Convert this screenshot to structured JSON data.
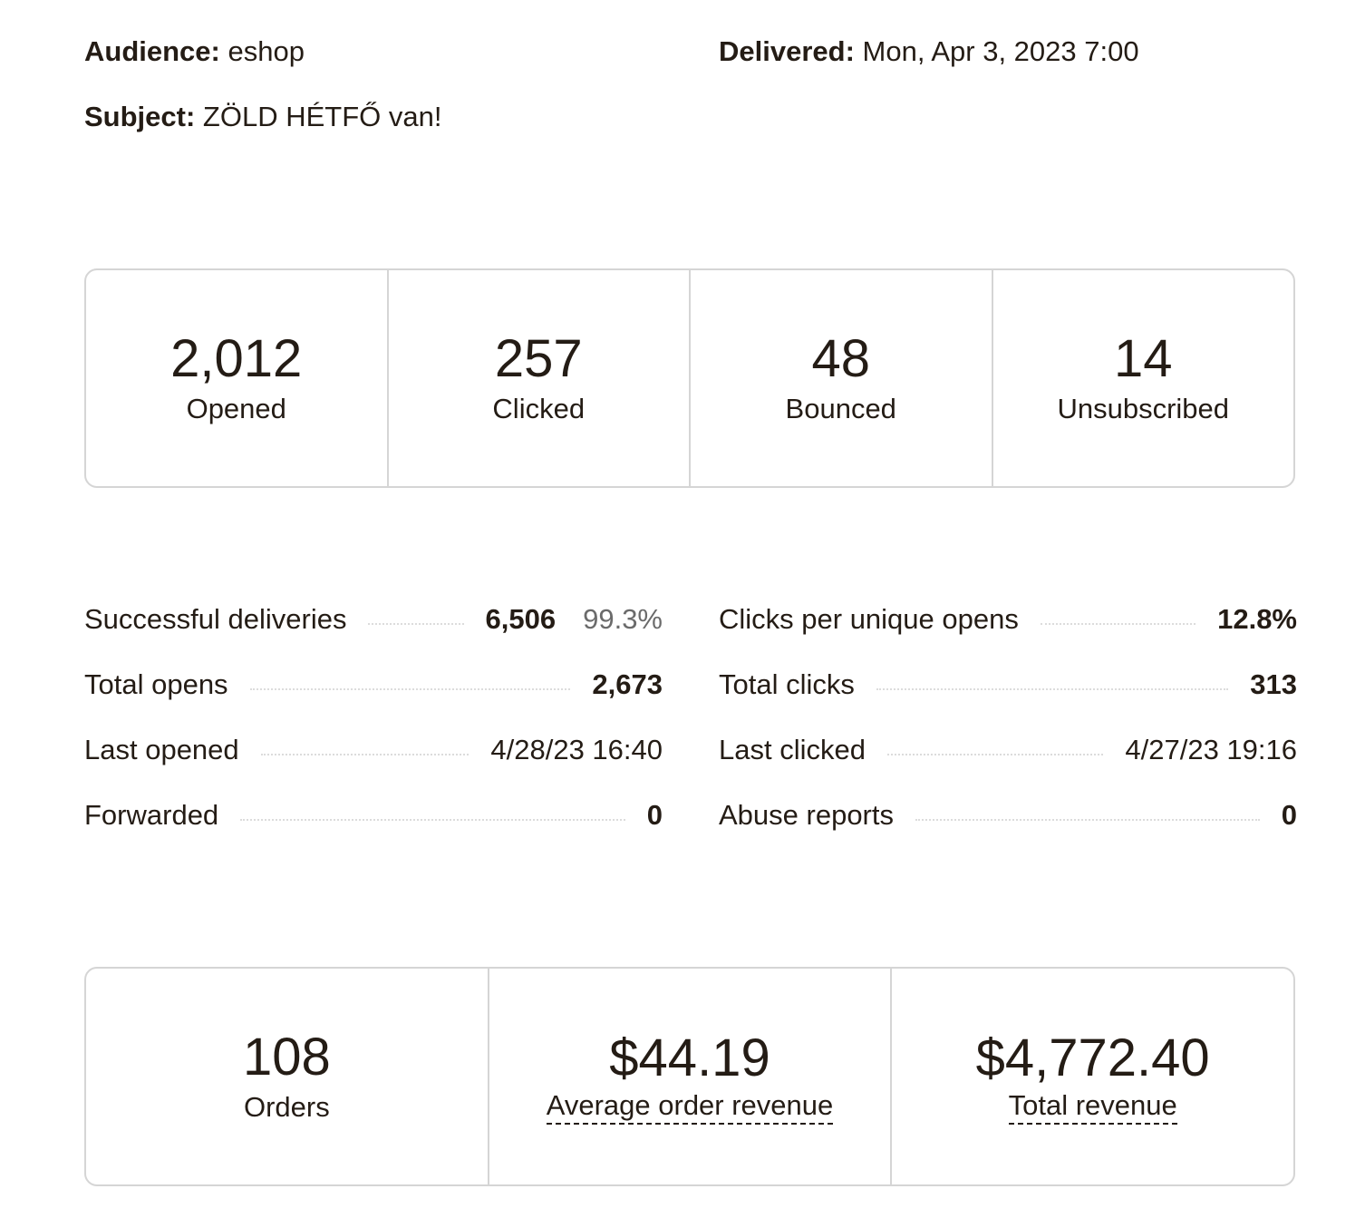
{
  "meta": {
    "audience_label": "Audience:",
    "audience_value": "eshop",
    "delivered_label": "Delivered:",
    "delivered_value": "Mon, Apr 3, 2023 7:00",
    "subject_label": "Subject:",
    "subject_value": "ZÖLD HÉTFŐ van!"
  },
  "engagement": [
    {
      "value": "2,012",
      "label": "Opened"
    },
    {
      "value": "257",
      "label": "Clicked"
    },
    {
      "value": "48",
      "label": "Bounced"
    },
    {
      "value": "14",
      "label": "Unsubscribed"
    }
  ],
  "details_left": [
    {
      "label": "Successful deliveries",
      "value": "6,506",
      "pct": "99.3%"
    },
    {
      "label": "Total opens",
      "value": "2,673"
    },
    {
      "label": "Last opened",
      "value": "4/28/23 16:40"
    },
    {
      "label": "Forwarded",
      "value": "0"
    }
  ],
  "details_right": [
    {
      "label": "Clicks per unique opens",
      "value": "12.8%"
    },
    {
      "label": "Total clicks",
      "value": "313"
    },
    {
      "label": "Last clicked",
      "value": "4/27/23 19:16"
    },
    {
      "label": "Abuse reports",
      "value": "0"
    }
  ],
  "revenue": [
    {
      "value": "108",
      "label": "Orders"
    },
    {
      "value": "$44.19",
      "label": "Average order revenue"
    },
    {
      "value": "$4,772.40",
      "label": "Total revenue"
    }
  ]
}
